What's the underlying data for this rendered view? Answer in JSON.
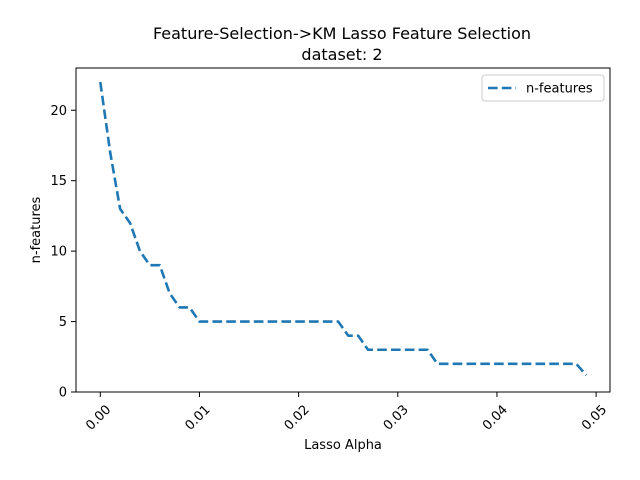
{
  "chart_data": {
    "type": "line",
    "title": "Feature-Selection->KM Lasso Feature Selection",
    "subtitle": "dataset: 2",
    "xlabel": "Lasso Alpha",
    "ylabel": "n-features",
    "xlim": [
      -0.00245,
      0.0514
    ],
    "ylim": [
      -0.0,
      23.0
    ],
    "x_ticks": [
      0.0,
      0.01,
      0.02,
      0.03,
      0.04,
      0.05
    ],
    "x_tick_labels": [
      "0.00",
      "0.01",
      "0.02",
      "0.03",
      "0.04",
      "0.05"
    ],
    "y_ticks": [
      0,
      5,
      10,
      15,
      20
    ],
    "y_tick_labels": [
      "0",
      "5",
      "10",
      "15",
      "20"
    ],
    "grid": false,
    "legend_position": "top-right",
    "series": [
      {
        "name": "n-features",
        "color": "#1f77b4",
        "line_style": "dashed",
        "x": [
          0.0,
          0.001,
          0.002,
          0.003,
          0.004,
          0.005,
          0.006,
          0.007,
          0.008,
          0.009,
          0.01,
          0.011,
          0.012,
          0.013,
          0.014,
          0.015,
          0.016,
          0.017,
          0.018,
          0.019,
          0.02,
          0.021,
          0.022,
          0.023,
          0.024,
          0.025,
          0.026,
          0.027,
          0.028,
          0.029,
          0.03,
          0.031,
          0.032,
          0.033,
          0.034,
          0.035,
          0.036,
          0.037,
          0.038,
          0.039,
          0.04,
          0.041,
          0.042,
          0.043,
          0.044,
          0.045,
          0.046,
          0.047,
          0.048,
          0.049
        ],
        "y": [
          22,
          17,
          13,
          12,
          10,
          9,
          9,
          7,
          6,
          6,
          5,
          5,
          5,
          5,
          5,
          5,
          5,
          5,
          5,
          5,
          5,
          5,
          5,
          5,
          5,
          4,
          4,
          3,
          3,
          3,
          3,
          3,
          3,
          3,
          2,
          2,
          2,
          2,
          2,
          2,
          2,
          2,
          2,
          2,
          2,
          2,
          2,
          2,
          2,
          1.2
        ]
      }
    ]
  }
}
